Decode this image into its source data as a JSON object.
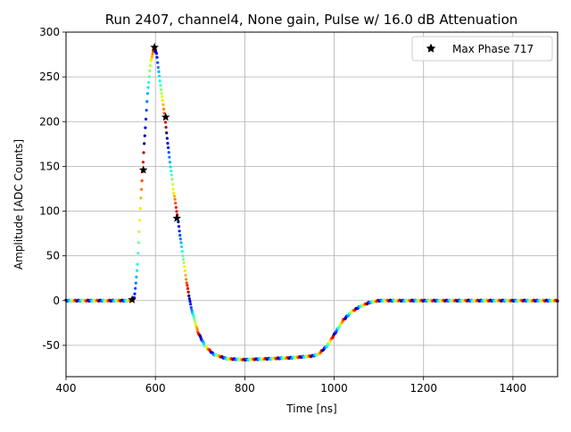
{
  "chart_data": {
    "type": "scatter",
    "title": "Run 2407, channel4, None gain, Pulse w/ 16.0 dB Attenuation",
    "xlabel": "Time [ns]",
    "ylabel": "Amplitude [ADC Counts]",
    "xlim": [
      400,
      1500
    ],
    "ylim": [
      -85,
      300
    ],
    "xticks": [
      400,
      600,
      800,
      1000,
      1200,
      1400
    ],
    "yticks": [
      -50,
      0,
      50,
      100,
      150,
      200,
      250,
      300
    ],
    "grid": true,
    "legend": {
      "position": "top-right",
      "entries": [
        {
          "label": "Max Phase 717",
          "marker": "star",
          "color": "#000000"
        }
      ]
    },
    "colormap": "jet",
    "waveform_keypoints": [
      [
        400,
        0
      ],
      [
        545,
        0
      ],
      [
        553,
        3
      ],
      [
        560,
        40
      ],
      [
        567,
        110
      ],
      [
        575,
        175
      ],
      [
        583,
        235
      ],
      [
        590,
        268
      ],
      [
        597,
        282
      ],
      [
        603,
        275
      ],
      [
        610,
        245
      ],
      [
        620,
        210
      ],
      [
        630,
        165
      ],
      [
        640,
        125
      ],
      [
        650,
        92
      ],
      [
        660,
        55
      ],
      [
        670,
        20
      ],
      [
        680,
        -8
      ],
      [
        695,
        -35
      ],
      [
        710,
        -50
      ],
      [
        730,
        -60
      ],
      [
        760,
        -65
      ],
      [
        800,
        -66
      ],
      [
        850,
        -65
      ],
      [
        900,
        -64
      ],
      [
        950,
        -62
      ],
      [
        965,
        -60
      ],
      [
        985,
        -50
      ],
      [
        1000,
        -38
      ],
      [
        1020,
        -22
      ],
      [
        1040,
        -12
      ],
      [
        1060,
        -6
      ],
      [
        1080,
        -2
      ],
      [
        1100,
        0
      ],
      [
        1500,
        0
      ]
    ],
    "highlighted_series": {
      "name": "Max Phase 717",
      "marker": "star",
      "color": "#000000",
      "points": [
        {
          "x": 548,
          "y": 1
        },
        {
          "x": 573,
          "y": 146
        },
        {
          "x": 598,
          "y": 283
        },
        {
          "x": 623,
          "y": 205
        },
        {
          "x": 648,
          "y": 92
        }
      ]
    }
  }
}
